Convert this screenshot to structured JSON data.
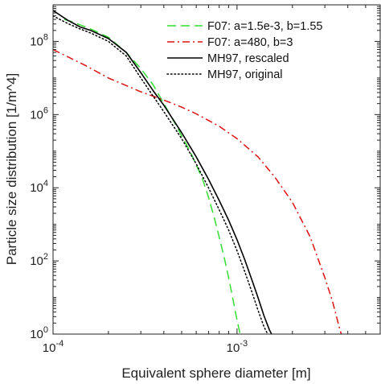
{
  "chart_data": {
    "type": "line",
    "title": "",
    "xlabel": "Equivalent sphere diameter [m]",
    "ylabel": "Particle size distribution [1/m^4]",
    "xscale": "log",
    "yscale": "log",
    "xlim": [
      0.0001,
      0.006
    ],
    "ylim": [
      1,
      1000000000.0
    ],
    "grid": false,
    "legend_position": "top-right",
    "x_ticks": [
      {
        "value": 0.0001,
        "base": "10",
        "exp": "-4"
      },
      {
        "value": 0.001,
        "base": "10",
        "exp": "-3"
      }
    ],
    "y_ticks": [
      {
        "value": 1,
        "base": "10",
        "exp": "0"
      },
      {
        "value": 100,
        "base": "10",
        "exp": "2"
      },
      {
        "value": 10000,
        "base": "10",
        "exp": "4"
      },
      {
        "value": 1000000,
        "base": "10",
        "exp": "6"
      },
      {
        "value": 100000000,
        "base": "10",
        "exp": "8"
      }
    ],
    "series": [
      {
        "name": "F07: a=1.5e-3, b=1.55",
        "color": "#33dd33",
        "style": "dashed",
        "x": [
          0.000115,
          0.00013,
          0.00016,
          0.0002,
          0.00025,
          0.0003,
          0.00035,
          0.0004,
          0.00045,
          0.0005,
          0.00055,
          0.0006,
          0.00065,
          0.0007,
          0.00075,
          0.0008,
          0.00085,
          0.0009,
          0.00095,
          0.001,
          0.00105
        ],
        "y": [
          400000000,
          330000000,
          220000000,
          130000000,
          50000000,
          18000000,
          6500000,
          2000000,
          700000,
          260000,
          110000,
          42000,
          17000,
          5500,
          1600,
          450,
          130,
          35,
          9,
          2.4,
          0.8
        ]
      },
      {
        "name": "F07: a=480, b=3",
        "color": "#dd1111",
        "style": "dashdot",
        "x": [
          0.0001,
          0.00015,
          0.0002,
          0.0003,
          0.0004,
          0.0005,
          0.0006,
          0.0008,
          0.001,
          0.0013,
          0.0016,
          0.002,
          0.0025,
          0.003,
          0.0033,
          0.0036,
          0.0038
        ],
        "y": [
          60000000,
          22000000,
          10000000,
          4200000,
          2500000,
          1600000,
          1050000,
          480000,
          220000,
          70000,
          20000,
          4000,
          450,
          35,
          8,
          1.5,
          0.6
        ]
      },
      {
        "name": "MH97, rescaled",
        "color": "#000000",
        "style": "solid",
        "x": [
          0.0001,
          0.00012,
          0.00014,
          0.00016,
          0.0002,
          0.00025,
          0.0003,
          0.00035,
          0.0004,
          0.0005,
          0.0006,
          0.0007,
          0.0008,
          0.0009,
          0.001,
          0.0011,
          0.0012,
          0.0013,
          0.0014,
          0.0015,
          0.0016,
          0.00165
        ],
        "y": [
          700000000,
          380000000,
          250000000,
          200000000,
          120000000,
          50000000,
          14000000,
          4500000,
          1800000,
          320000,
          70000,
          17000,
          4500,
          1300,
          380,
          110,
          32,
          10,
          3.2,
          1.3,
          0.7,
          0.5
        ]
      },
      {
        "name": "MH97, original",
        "color": "#000000",
        "style": "dotted",
        "x": [
          0.0001,
          0.00012,
          0.00014,
          0.00016,
          0.0002,
          0.00025,
          0.0003,
          0.00035,
          0.0004,
          0.0005,
          0.0006,
          0.0007,
          0.0008,
          0.0009,
          0.001,
          0.0011,
          0.0012,
          0.0013,
          0.0014,
          0.0015,
          0.0016
        ],
        "y": [
          500000000,
          310000000,
          220000000,
          170000000,
          100000000,
          40000000,
          10000000,
          3200000,
          1200000,
          220000,
          45000,
          10000,
          2500,
          700,
          190,
          52,
          15,
          4.5,
          1.6,
          0.8,
          0.5
        ]
      }
    ]
  }
}
